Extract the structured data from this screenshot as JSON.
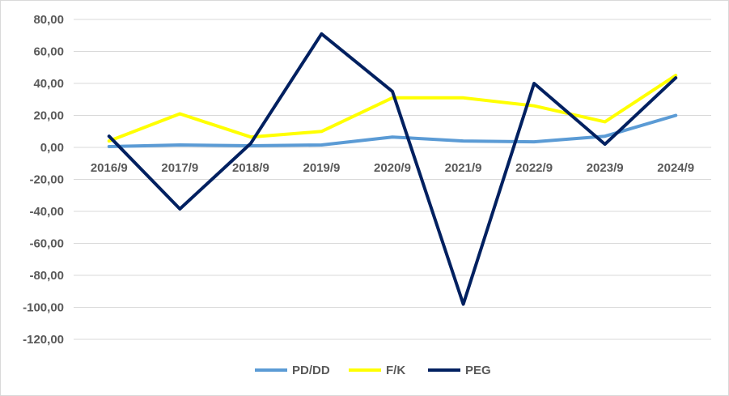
{
  "chart_data": {
    "type": "line",
    "title": "",
    "xlabel": "",
    "ylabel": "",
    "categories": [
      "2016/9",
      "2017/9",
      "2018/9",
      "2019/9",
      "2020/9",
      "2021/9",
      "2022/9",
      "2023/9",
      "2024/9"
    ],
    "ylim": [
      -120,
      80
    ],
    "ytick_step": 20,
    "ytick_labels": [
      "80,00",
      "60,00",
      "40,00",
      "20,00",
      "0,00",
      "-20,00",
      "-40,00",
      "-60,00",
      "-80,00",
      "-100,00",
      "-120,00"
    ],
    "grid": true,
    "legend_position": "bottom",
    "series": [
      {
        "name": "PD/DD",
        "color": "#5b9bd5",
        "values": [
          0.5,
          1.5,
          1.0,
          1.5,
          6.5,
          4.0,
          3.5,
          7.0,
          20.0
        ]
      },
      {
        "name": "F/K",
        "color": "#ffff00",
        "values": [
          4.0,
          21.0,
          6.5,
          10.0,
          31.0,
          31.0,
          26.0,
          16.0,
          45.0
        ]
      },
      {
        "name": "PEG",
        "color": "#002060",
        "values": [
          7.0,
          -38.5,
          2.5,
          71.0,
          35.0,
          -98.0,
          40.0,
          2.0,
          43.5
        ]
      }
    ]
  }
}
